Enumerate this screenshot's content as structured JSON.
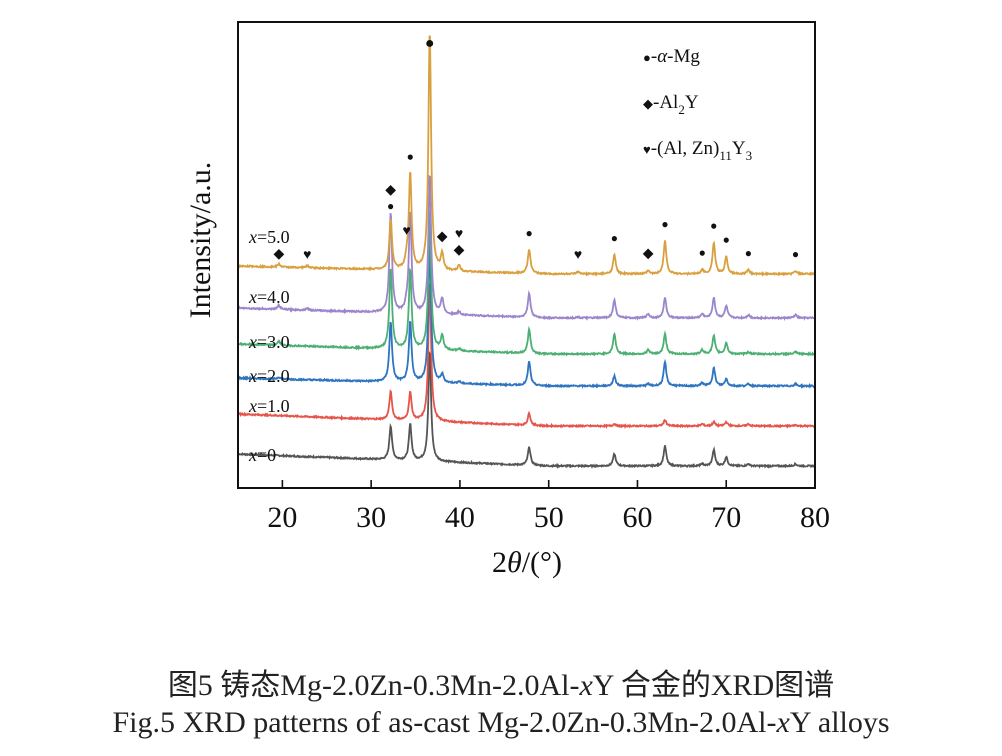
{
  "chart_data": {
    "type": "line",
    "title": "",
    "xlabel": "2θ/(°)",
    "ylabel": "Intensity/a.u.",
    "xlim": [
      15,
      80
    ],
    "x_ticks": [
      20,
      30,
      40,
      50,
      60,
      70,
      80
    ],
    "y_ticks": [],
    "grid": false,
    "legend_position": "top-right",
    "legend": [
      {
        "symbol": "●",
        "phase": "α-Mg",
        "text_prefix": "-",
        "italic_part": "α",
        "rest": "-Mg"
      },
      {
        "symbol": "◆",
        "phase": "Al2Y",
        "text": "-Al",
        "sub": "2",
        "after": "Y"
      },
      {
        "symbol": "♥",
        "phase": "(Al, Zn)11Y3",
        "text": "-(Al, Zn)",
        "sub": "11",
        "after": "Y",
        "sub2": "3"
      }
    ],
    "series": [
      {
        "name": "x=0",
        "label_var": "x",
        "label_val": "=0",
        "color": "#555555",
        "offset": 0,
        "baseline_start": 12,
        "baseline_end": 0,
        "peaks": [
          [
            32.2,
            34
          ],
          [
            34.4,
            36
          ],
          [
            36.6,
            110
          ],
          [
            47.8,
            18
          ],
          [
            57.4,
            12
          ],
          [
            63.1,
            20
          ],
          [
            67.3,
            2
          ],
          [
            68.6,
            16
          ],
          [
            70.0,
            9
          ],
          [
            72.5,
            2
          ],
          [
            77.8,
            2
          ]
        ]
      },
      {
        "name": "x=1.0",
        "label_var": "x",
        "label_val": "=1.0",
        "color": "#e5554b",
        "offset": 40,
        "baseline_start": 12,
        "baseline_end": 0,
        "peaks": [
          [
            32.2,
            28
          ],
          [
            34.4,
            28
          ],
          [
            36.6,
            140
          ],
          [
            47.8,
            12
          ],
          [
            57.4,
            2
          ],
          [
            63.1,
            6
          ],
          [
            67.3,
            2
          ],
          [
            68.6,
            4
          ],
          [
            70.0,
            4
          ],
          [
            72.5,
            2
          ],
          [
            77.8,
            1
          ]
        ]
      },
      {
        "name": "x=2.0",
        "label_var": "x",
        "label_val": "=2.0",
        "color": "#2e74c0",
        "offset": 80,
        "baseline_start": 8,
        "baseline_end": 0,
        "peaks": [
          [
            19.6,
            2
          ],
          [
            32.2,
            60
          ],
          [
            34.4,
            60
          ],
          [
            36.6,
            140
          ],
          [
            38.0,
            8
          ],
          [
            39.9,
            2
          ],
          [
            47.8,
            24
          ],
          [
            57.4,
            10
          ],
          [
            61.2,
            2
          ],
          [
            63.1,
            24
          ],
          [
            67.3,
            3
          ],
          [
            68.6,
            18
          ],
          [
            70.0,
            7
          ],
          [
            72.5,
            2
          ],
          [
            77.8,
            2
          ]
        ]
      },
      {
        "name": "x=3.0",
        "label_var": "x",
        "label_val": "=3.0",
        "color": "#4caf73",
        "offset": 112,
        "baseline_start": 10,
        "baseline_end": 0,
        "peaks": [
          [
            19.6,
            4
          ],
          [
            32.2,
            80
          ],
          [
            34.4,
            80
          ],
          [
            36.6,
            140
          ],
          [
            38.0,
            14
          ],
          [
            39.9,
            2
          ],
          [
            47.8,
            24
          ],
          [
            57.4,
            20
          ],
          [
            61.2,
            4
          ],
          [
            63.1,
            20
          ],
          [
            67.3,
            4
          ],
          [
            68.6,
            18
          ],
          [
            70.0,
            11
          ],
          [
            72.5,
            2
          ],
          [
            77.8,
            2
          ]
        ]
      },
      {
        "name": "x=4.0",
        "label_var": "x",
        "label_val": "=4.0",
        "color": "#9b86cc",
        "offset": 148,
        "baseline_start": 10,
        "baseline_end": 0,
        "peaks": [
          [
            19.6,
            4
          ],
          [
            22.8,
            2
          ],
          [
            32.2,
            100
          ],
          [
            34.0,
            6
          ],
          [
            34.4,
            100
          ],
          [
            36.6,
            140
          ],
          [
            38.0,
            15
          ],
          [
            39.9,
            3
          ],
          [
            47.8,
            24
          ],
          [
            53.3,
            1
          ],
          [
            57.4,
            18
          ],
          [
            61.2,
            4
          ],
          [
            63.1,
            20
          ],
          [
            67.3,
            4
          ],
          [
            68.6,
            20
          ],
          [
            70.0,
            12
          ],
          [
            72.5,
            3
          ],
          [
            77.8,
            3
          ]
        ]
      },
      {
        "name": "x=5.0",
        "label_var": "x",
        "label_val": "=5.0",
        "color": "#d9a03f",
        "offset": 192,
        "baseline_start": 8,
        "baseline_end": 0,
        "peaks": [
          [
            19.6,
            3
          ],
          [
            22.8,
            2
          ],
          [
            32.2,
            50
          ],
          [
            34.0,
            8
          ],
          [
            34.4,
            97
          ],
          [
            36.6,
            240
          ],
          [
            38.0,
            16
          ],
          [
            39.9,
            6
          ],
          [
            47.8,
            24
          ],
          [
            53.3,
            2
          ],
          [
            57.4,
            19
          ],
          [
            61.2,
            3
          ],
          [
            63.1,
            33
          ],
          [
            67.3,
            4
          ],
          [
            68.6,
            31
          ],
          [
            70.0,
            17
          ],
          [
            72.5,
            4
          ],
          [
            77.8,
            3
          ]
        ]
      }
    ],
    "annotations": [
      {
        "series": "x=5.0",
        "two_theta": 19.6,
        "symbols": [
          "◆"
        ]
      },
      {
        "series": "x=5.0",
        "two_theta": 22.8,
        "symbols": [
          "♥"
        ]
      },
      {
        "series": "x=5.0",
        "two_theta": 32.2,
        "symbols": [
          "●",
          "◆"
        ]
      },
      {
        "series": "x=5.0",
        "two_theta": 34.0,
        "symbols": [
          "♥"
        ]
      },
      {
        "series": "x=5.0",
        "two_theta": 34.4,
        "symbols": [
          "●"
        ]
      },
      {
        "series": "x=5.0",
        "two_theta": 36.6,
        "symbols": [
          "●"
        ]
      },
      {
        "series": "x=5.0",
        "two_theta": 38.0,
        "symbols": [
          "◆"
        ]
      },
      {
        "series": "x=5.0",
        "two_theta": 39.9,
        "symbols": [
          "◆",
          "♥"
        ]
      },
      {
        "series": "x=5.0",
        "two_theta": 47.8,
        "symbols": [
          "●"
        ]
      },
      {
        "series": "x=5.0",
        "two_theta": 53.3,
        "symbols": [
          "♥"
        ]
      },
      {
        "series": "x=5.0",
        "two_theta": 57.4,
        "symbols": [
          "●"
        ]
      },
      {
        "series": "x=5.0",
        "two_theta": 61.2,
        "symbols": [
          "◆"
        ]
      },
      {
        "series": "x=5.0",
        "two_theta": 63.1,
        "symbols": [
          "●"
        ]
      },
      {
        "series": "x=5.0",
        "two_theta": 67.3,
        "symbols": [
          "●"
        ]
      },
      {
        "series": "x=5.0",
        "two_theta": 68.6,
        "symbols": [
          "●"
        ]
      },
      {
        "series": "x=5.0",
        "two_theta": 70.0,
        "symbols": [
          "●"
        ]
      },
      {
        "series": "x=5.0",
        "two_theta": 72.5,
        "symbols": [
          "●"
        ]
      },
      {
        "series": "x=5.0",
        "two_theta": 77.8,
        "symbols": [
          "●"
        ]
      }
    ]
  },
  "caption": {
    "cn_prefix": "图5  铸态Mg-2.0Zn-0.3Mn-2.0Al-",
    "cn_var": "x",
    "cn_suffix": "Y 合金的XRD图谱",
    "en_prefix": "Fig.5  XRD patterns of as-cast Mg-2.0Zn-0.3Mn-2.0Al-",
    "en_var": "x",
    "en_suffix": "Y alloys"
  }
}
